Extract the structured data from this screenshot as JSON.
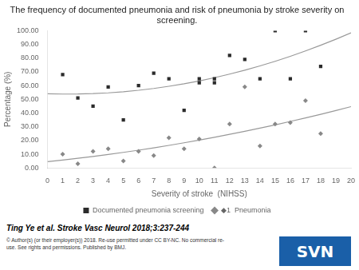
{
  "chart_data": {
    "type": "scatter",
    "title": "The frequency of documented pneumonia and risk of pneumonia by stroke severity on\nscreening.",
    "x_label": "Severity of stroke  (NIHSS)",
    "y_label": "Percentage (%)",
    "xlim": [
      0,
      20
    ],
    "ylim": [
      0,
      100
    ],
    "xticks": [
      0,
      1,
      2,
      3,
      4,
      5,
      6,
      7,
      8,
      9,
      10,
      11,
      12,
      13,
      14,
      15,
      16,
      17,
      18,
      19,
      20
    ],
    "yticks": [
      {
        "value": 0,
        "label": "0.00"
      },
      {
        "value": 10,
        "label": "10.00"
      },
      {
        "value": 20,
        "label": "20.00"
      },
      {
        "value": 30,
        "label": "30.00"
      },
      {
        "value": 40,
        "label": "40.00"
      },
      {
        "value": 50,
        "label": "50.00"
      },
      {
        "value": 60,
        "label": "60.00"
      },
      {
        "value": 70,
        "label": "70.00"
      },
      {
        "value": 80,
        "label": "80.00"
      },
      {
        "value": 90,
        "label": "90.00"
      },
      {
        "value": 100,
        "label": "100.00"
      }
    ],
    "grid": false,
    "legend": "bottom",
    "series": [
      {
        "name": "Documented pneumonia screening",
        "type": "scatter",
        "marker": "square",
        "color": "#2b2b2b",
        "x": [
          1,
          2,
          3,
          4,
          5,
          6,
          7,
          8,
          9,
          10,
          10,
          11,
          11,
          12,
          13,
          14,
          15,
          16,
          17,
          18
        ],
        "values": [
          68,
          51,
          45,
          59,
          35,
          60,
          69,
          65,
          42,
          65,
          62,
          65,
          62,
          82,
          79,
          65,
          100,
          65,
          100,
          74
        ]
      },
      {
        "name": "◆1  Pneumonia",
        "type": "scatter",
        "marker": "diamond",
        "color": "#888888",
        "x": [
          1,
          2,
          3,
          4,
          5,
          6,
          7,
          8,
          9,
          10,
          11,
          12,
          13,
          14,
          15,
          16,
          17,
          18
        ],
        "values": [
          10,
          3,
          12,
          14,
          5,
          12,
          9,
          22,
          14,
          21,
          0,
          32,
          59,
          16,
          32,
          33,
          49,
          25
        ]
      },
      {
        "type": "line",
        "color": "#999999",
        "x": [
          0,
          1,
          2,
          3,
          4,
          5,
          6,
          7,
          8,
          9,
          10,
          11,
          12,
          13,
          14,
          15,
          16,
          17,
          18,
          19,
          20
        ],
        "values": [
          54.03,
          53.81,
          53.85,
          54.15,
          54.7,
          55.5,
          56.57,
          57.89,
          59.47,
          61.3,
          63.39,
          65.74,
          68.35,
          71.21,
          74.33,
          77.7,
          81.33,
          85.22,
          89.36,
          93.77,
          98.42
        ]
      },
      {
        "type": "line",
        "color": "#999999",
        "x": [
          0,
          1,
          2,
          3,
          4,
          5,
          6,
          7,
          8,
          9,
          10,
          11,
          12,
          13,
          14,
          15,
          16,
          17,
          18,
          19,
          20
        ],
        "values": [
          4.58,
          5.75,
          7.02,
          8.37,
          9.81,
          11.33,
          12.94,
          14.64,
          16.43,
          18.3,
          20.26,
          22.31,
          24.45,
          26.67,
          28.98,
          31.37,
          33.86,
          36.43,
          39.09,
          41.83,
          44.67
        ]
      }
    ],
    "annotations": [
      {
        "text": "Ting Ye et al. Stroke Vasc Neurol 2018;3:237-244"
      },
      {
        "text": "© Author(s) (or their employer(s)) 2018. Re-use permitted under CC BY-NC. No commercial re-"
      },
      {
        "text": "use. See rights and permissions. Published by BMJ."
      },
      {
        "text": "SVN",
        "color": "#1a5fa8"
      }
    ]
  }
}
